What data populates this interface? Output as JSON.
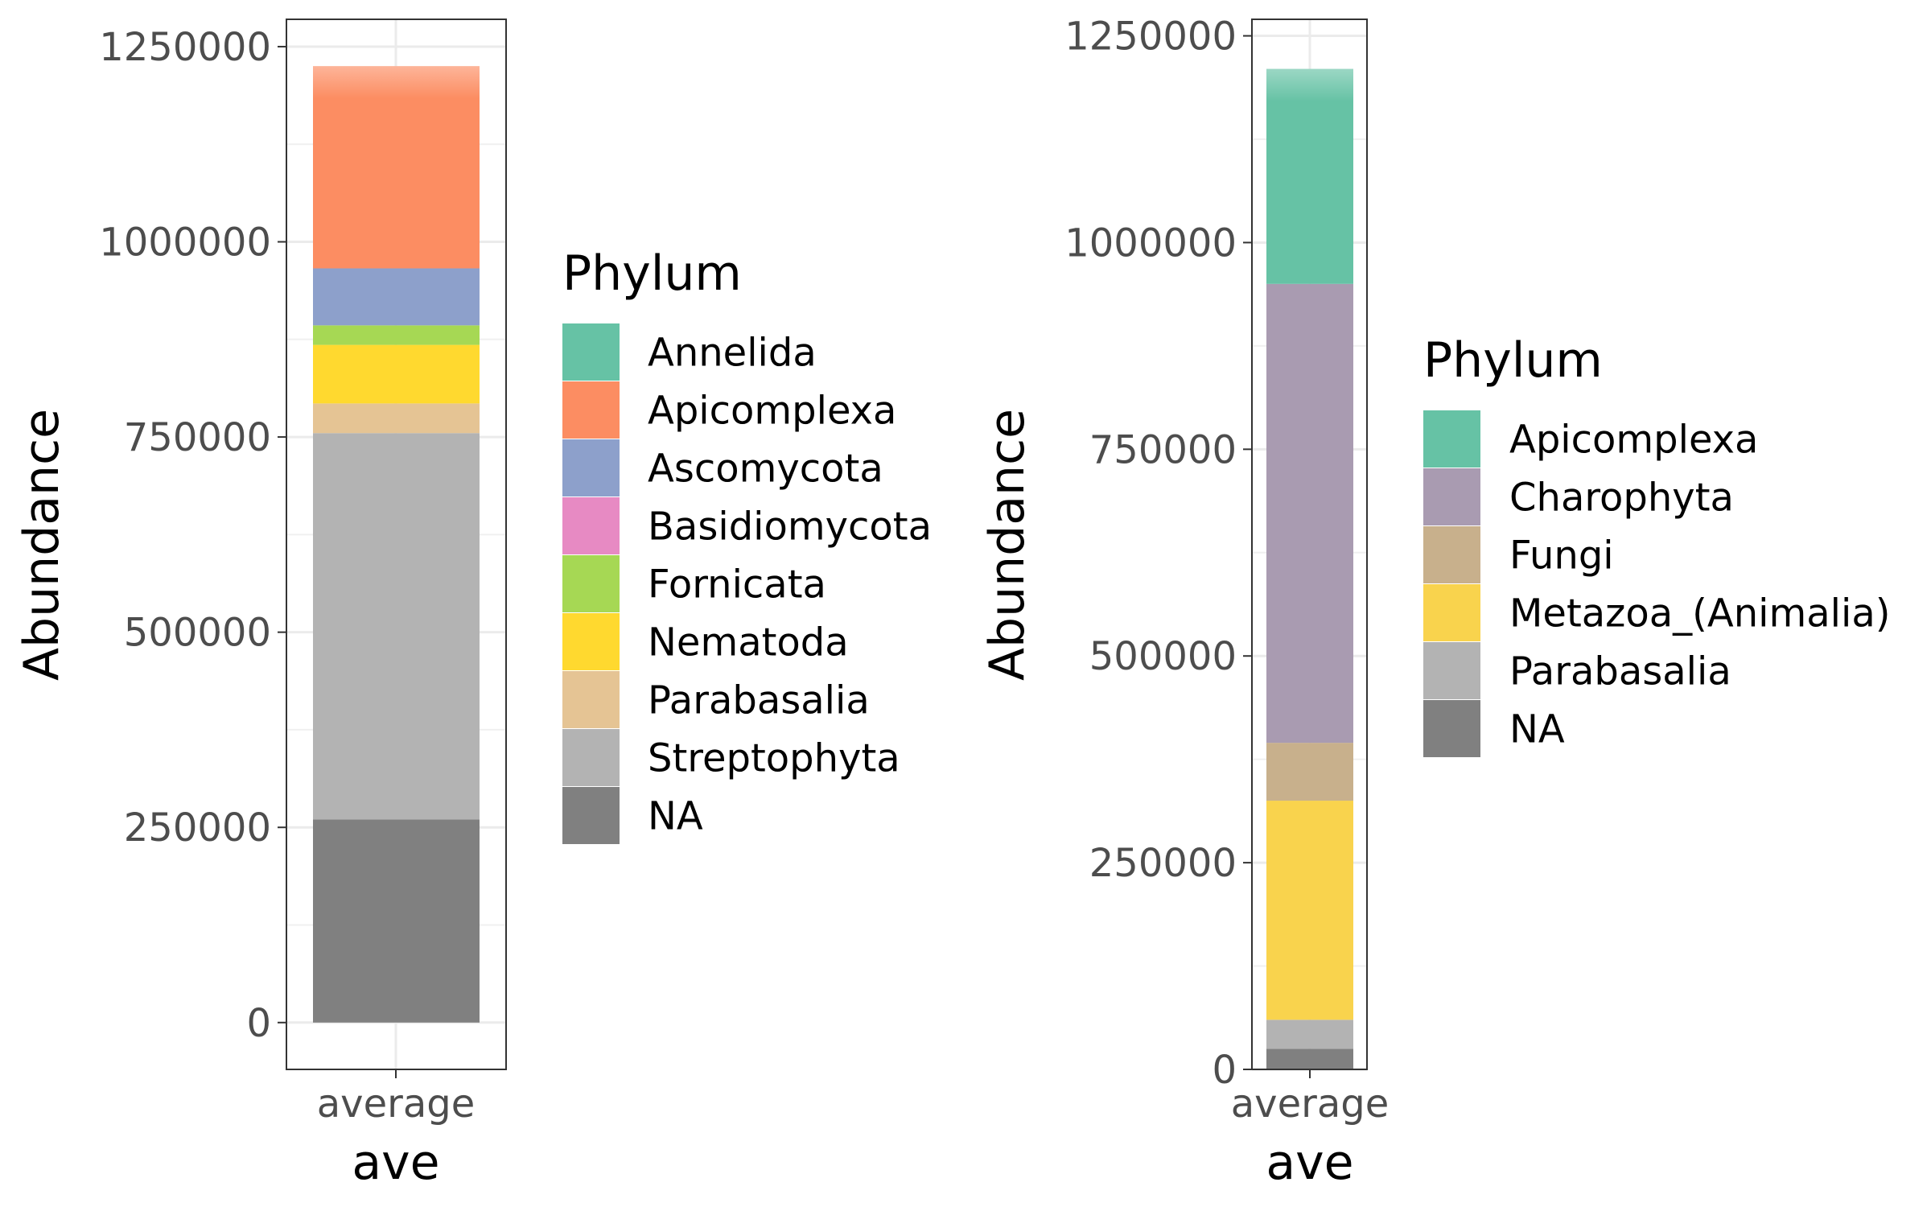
{
  "chart_data": [
    {
      "type": "bar",
      "stacked": true,
      "categories": [
        "average"
      ],
      "xlabel": "ave",
      "ylabel": "Abundance",
      "ylim": [
        -60000,
        1285000
      ],
      "yticks": [
        0,
        250000,
        500000,
        750000,
        1000000,
        1250000
      ],
      "ytick_labels": [
        "0",
        "250000",
        "500000",
        "750000",
        "1000000",
        "1250000"
      ],
      "grid": true,
      "legend": {
        "title": "Phylum",
        "placement": "right"
      },
      "series": [
        {
          "name": "NA",
          "color": "#808080",
          "values": [
            260000
          ]
        },
        {
          "name": "Streptophyta",
          "color": "#b3b3b3",
          "values": [
            495000
          ]
        },
        {
          "name": "Parabasalia",
          "color": "#e5c494",
          "values": [
            38000
          ]
        },
        {
          "name": "Nematoda",
          "color": "#ffd92f",
          "values": [
            75000
          ]
        },
        {
          "name": "Fornicata",
          "color": "#a6d854",
          "values": [
            25000
          ]
        },
        {
          "name": "Basidiomycota",
          "color": "#e78ac3",
          "values": [
            0
          ]
        },
        {
          "name": "Ascomycota",
          "color": "#8da0cb",
          "values": [
            73000
          ]
        },
        {
          "name": "Apicomplexa",
          "color": "#fc8d62",
          "values": [
            259000
          ]
        },
        {
          "name": "Annelida",
          "color": "#66c2a5",
          "values": [
            0
          ]
        }
      ],
      "legend_order": [
        "Annelida",
        "Apicomplexa",
        "Ascomycota",
        "Basidiomycota",
        "Fornicata",
        "Nematoda",
        "Parabasalia",
        "Streptophyta",
        "NA"
      ]
    },
    {
      "type": "bar",
      "stacked": true,
      "categories": [
        "average"
      ],
      "xlabel": "ave",
      "ylabel": "Abundance",
      "ylim": [
        0,
        1270000
      ],
      "yticks": [
        0,
        250000,
        500000,
        750000,
        1000000,
        1250000
      ],
      "ytick_labels": [
        "0",
        "250000",
        "500000",
        "750000",
        "1000000",
        "1250000"
      ],
      "grid": true,
      "legend": {
        "title": "Phylum",
        "placement": "right"
      },
      "series": [
        {
          "name": "NA",
          "color": "#808080",
          "values": [
            25000
          ]
        },
        {
          "name": "Parabasalia",
          "color": "#b3b3b3",
          "values": [
            35000
          ]
        },
        {
          "name": "Metazoa_(Animalia)",
          "color": "#f9d34d",
          "values": [
            265000
          ]
        },
        {
          "name": "Fungi",
          "color": "#c8b08c",
          "values": [
            70000
          ]
        },
        {
          "name": "Charophyta",
          "color": "#a99bb1",
          "values": [
            555000
          ]
        },
        {
          "name": "Apicomplexa",
          "color": "#66c2a5",
          "values": [
            260000
          ]
        }
      ],
      "legend_order": [
        "Apicomplexa",
        "Charophyta",
        "Fungi",
        "Metazoa_(Animalia)",
        "Parabasalia",
        "NA"
      ]
    }
  ]
}
